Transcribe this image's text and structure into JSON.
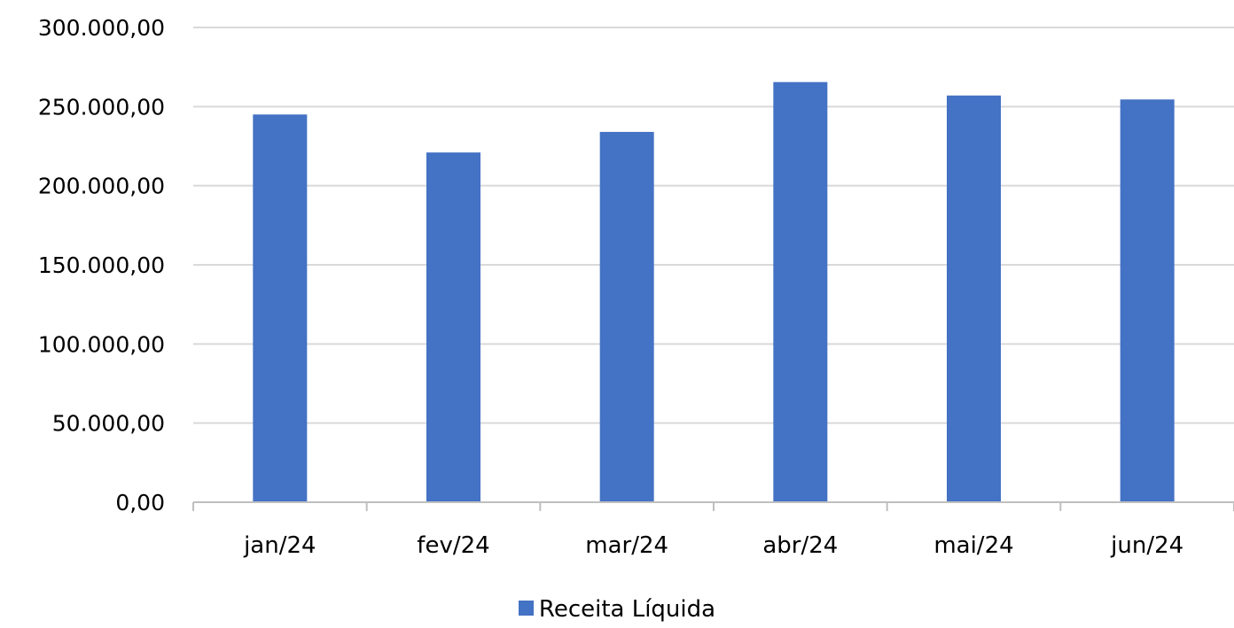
{
  "chart_data": {
    "type": "bar",
    "title": "",
    "xlabel": "",
    "ylabel": "",
    "categories": [
      "jan/24",
      "fev/24",
      "mar/24",
      "abr/24",
      "mai/24",
      "jun/24"
    ],
    "series": [
      {
        "name": "Receita Líquida",
        "color": "#4472C4",
        "values": [
          245000,
          221000,
          234000,
          265500,
          257000,
          254500
        ]
      }
    ],
    "ylim": [
      0,
      300000
    ],
    "yticks": [
      0,
      50000,
      100000,
      150000,
      200000,
      250000,
      300000
    ],
    "ytick_labels": [
      "0,00",
      "50.000,00",
      "100.000,00",
      "150.000,00",
      "200.000,00",
      "250.000,00",
      "300.000,00"
    ],
    "grid": true,
    "legend_position": "bottom",
    "colors": {
      "bar": "#4472C4",
      "grid": "#D9D9D9",
      "axis": "#BFBFBF",
      "text": "#000000"
    }
  }
}
